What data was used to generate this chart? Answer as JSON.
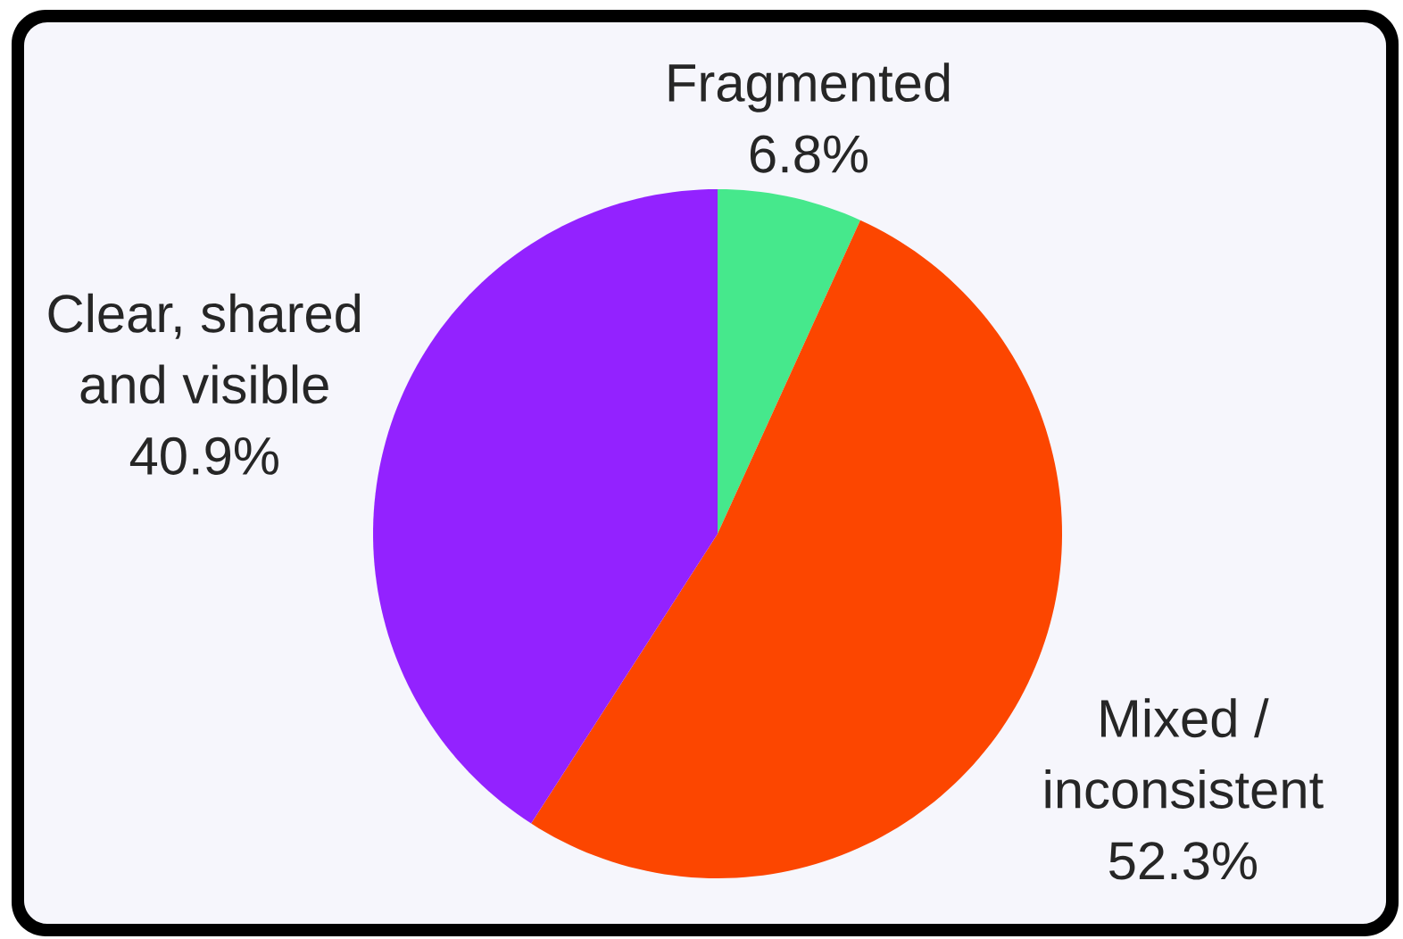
{
  "chart_data": {
    "type": "pie",
    "categories": [
      "Fragmented",
      "Mixed / inconsistent",
      "Clear, shared and visible"
    ],
    "values": [
      6.8,
      52.3,
      40.9
    ],
    "colors": [
      "#46e88c",
      "#fc4600",
      "#9322ff"
    ],
    "value_labels": [
      "6.8%",
      "52.3%",
      "40.9%"
    ]
  }
}
